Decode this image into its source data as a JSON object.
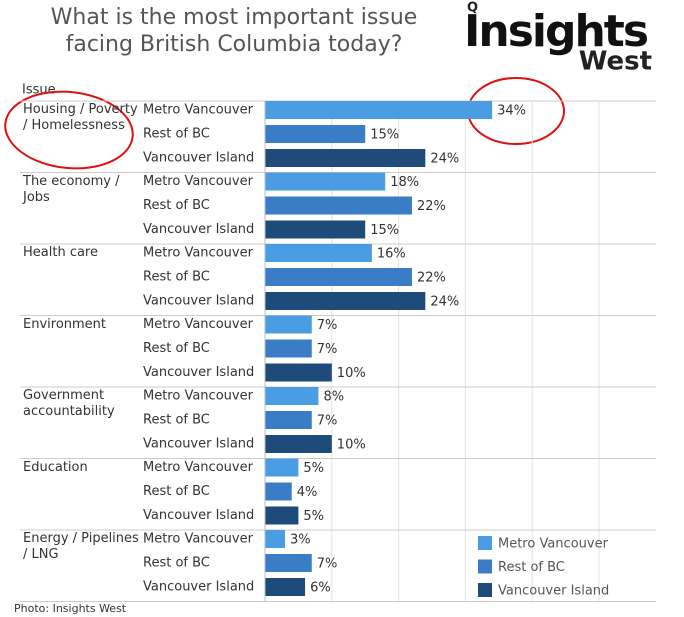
{
  "chart_data": {
    "type": "bar",
    "orientation": "horizontal",
    "title": "What is the most important issue facing British Columbia today?",
    "category_header": "Issue",
    "categories": [
      "Housing / Poverty / Homelessness",
      "The economy / Jobs",
      "Health care",
      "Environment",
      "Government accountability",
      "Education",
      "Energy / Pipelines / LNG"
    ],
    "series": [
      {
        "name": "Metro Vancouver",
        "color": "#4a9de3",
        "values": [
          34,
          18,
          16,
          7,
          8,
          5,
          3
        ],
        "value_labels": [
          "34%",
          "18%",
          "16%",
          "7%",
          "8%",
          "5%",
          "3%"
        ]
      },
      {
        "name": "Rest of BC",
        "color": "#3a7cc6",
        "values": [
          15,
          22,
          22,
          7,
          7,
          4,
          7
        ],
        "value_labels": [
          "15%",
          "22%",
          "22%",
          "7%",
          "7%",
          "4%",
          "7%"
        ]
      },
      {
        "name": "Vancouver Island",
        "color": "#1f4b7a",
        "values": [
          24,
          15,
          24,
          10,
          10,
          5,
          6
        ],
        "value_labels": [
          "24%",
          "15%",
          "24%",
          "10%",
          "10%",
          "5%",
          "6%"
        ]
      }
    ],
    "xlim": [
      0,
      58
    ],
    "xticks": [
      0,
      10,
      20,
      30,
      40,
      50
    ],
    "grid": true,
    "legend": "bottom-right"
  },
  "logo": {
    "icon": "Q",
    "name": "Insights",
    "sub": "West"
  },
  "photo_credit": "Photo: Insights West"
}
